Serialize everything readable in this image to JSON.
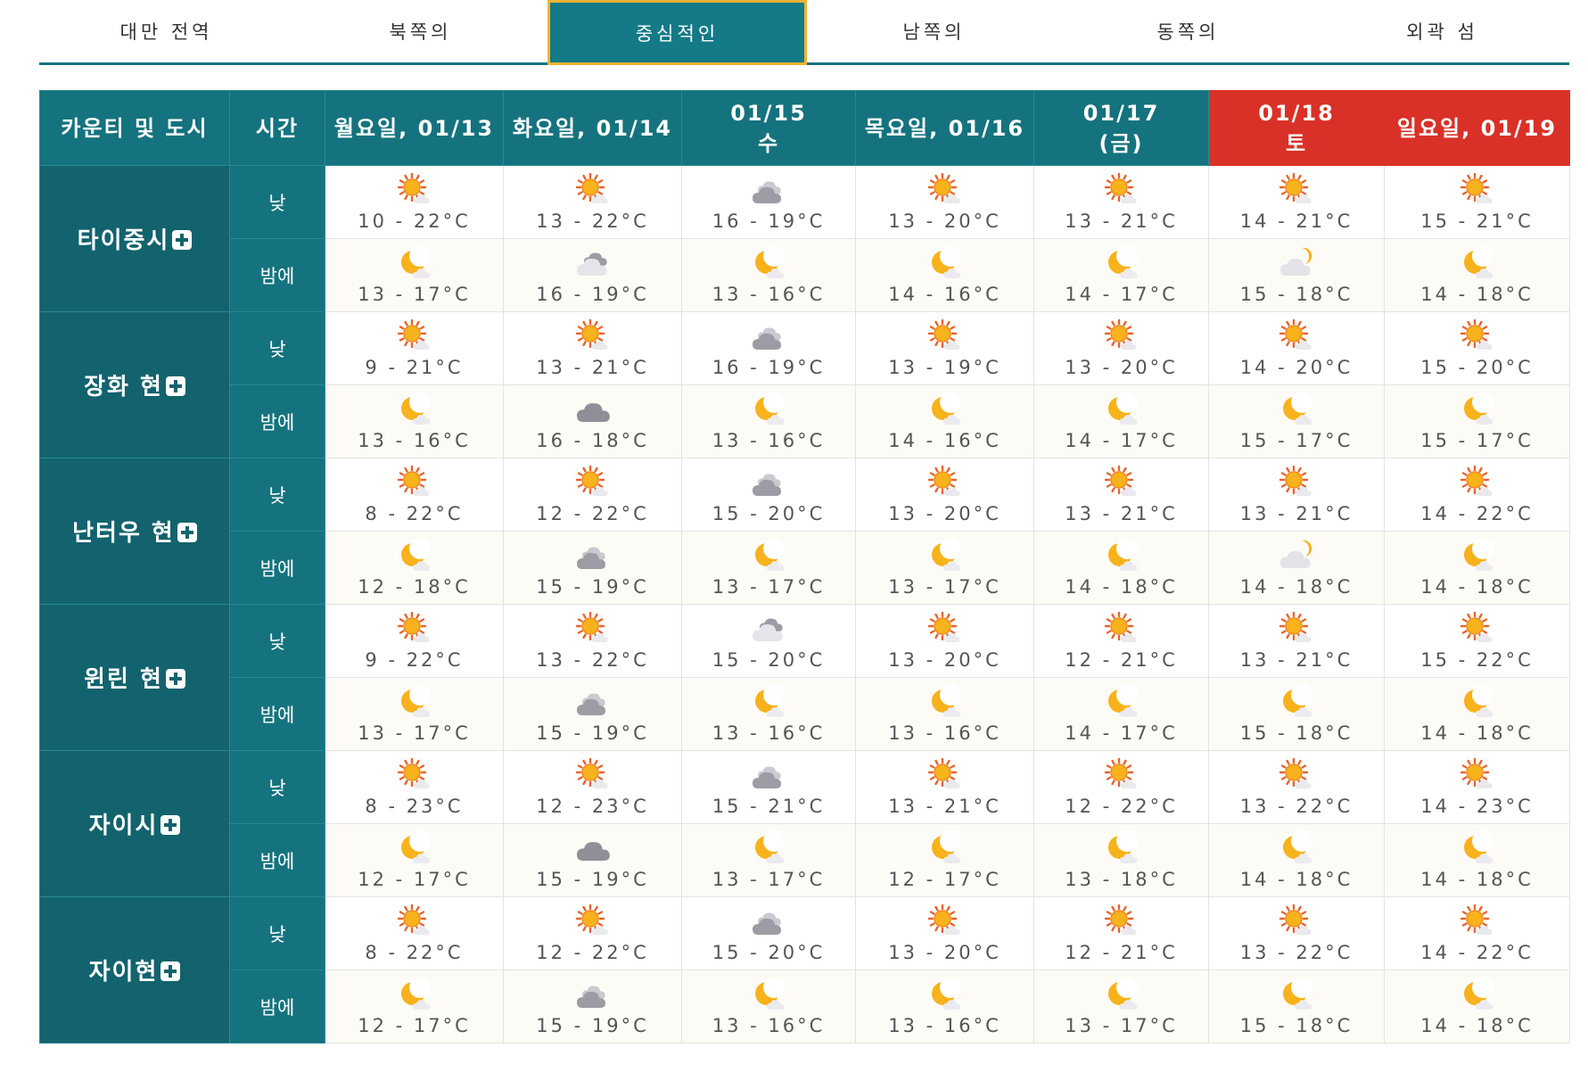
{
  "tabs": [
    "대만 전역",
    "북쪽의",
    "중심적인",
    "남쪽의",
    "동쪽의",
    "외곽 섬"
  ],
  "active_tab": 2,
  "table": {
    "headers": {
      "area": "카운티 및 도시",
      "time": "시간",
      "days": [
        {
          "lines": [
            "월요일, 01/13"
          ],
          "type": "weekday"
        },
        {
          "lines": [
            "화요일, 01/14"
          ],
          "type": "weekday"
        },
        {
          "lines": [
            "01/15",
            "수"
          ],
          "type": "weekday"
        },
        {
          "lines": [
            "목요일, 01/16"
          ],
          "type": "weekday"
        },
        {
          "lines": [
            "01/17",
            "(금)"
          ],
          "type": "weekday"
        },
        {
          "lines": [
            "01/18",
            "토"
          ],
          "type": "sat"
        },
        {
          "lines": [
            "일요일, 01/19"
          ],
          "type": "sun"
        }
      ]
    },
    "period_labels": {
      "day": "낮",
      "night": "밤에"
    },
    "colors": {
      "header": "#14737e",
      "city": "#12636d",
      "weekend": "#d93127",
      "tab_border": "#f0b431"
    },
    "cities": [
      {
        "name": "타이중시",
        "day": [
          [
            "sunny",
            "10 - 22°C"
          ],
          [
            "sunny",
            "13 - 22°C"
          ],
          [
            "cloudy",
            "16 - 19°C"
          ],
          [
            "sunny",
            "13 - 20°C"
          ],
          [
            "sunny",
            "13 - 21°C"
          ],
          [
            "sunny",
            "14 - 21°C"
          ],
          [
            "sunny",
            "15 - 21°C"
          ]
        ],
        "night": [
          [
            "moon",
            "13 - 17°C"
          ],
          [
            "cloudy-light",
            "16 - 19°C"
          ],
          [
            "moon",
            "13 - 16°C"
          ],
          [
            "moon",
            "14 - 16°C"
          ],
          [
            "moon",
            "14 - 17°C"
          ],
          [
            "cloud-moon",
            "15 - 18°C"
          ],
          [
            "moon",
            "14 - 18°C"
          ]
        ]
      },
      {
        "name": "장화 현",
        "day": [
          [
            "sunny",
            "9 - 21°C"
          ],
          [
            "sunny",
            "13 - 21°C"
          ],
          [
            "cloudy",
            "16 - 19°C"
          ],
          [
            "sunny",
            "13 - 19°C"
          ],
          [
            "sunny",
            "13 - 20°C"
          ],
          [
            "sunny",
            "14 - 20°C"
          ],
          [
            "sunny",
            "15 - 20°C"
          ]
        ],
        "night": [
          [
            "moon",
            "13 - 16°C"
          ],
          [
            "cloud-dark",
            "16 - 18°C"
          ],
          [
            "moon",
            "13 - 16°C"
          ],
          [
            "moon",
            "14 - 16°C"
          ],
          [
            "moon",
            "14 - 17°C"
          ],
          [
            "moon",
            "15 - 17°C"
          ],
          [
            "moon",
            "15 - 17°C"
          ]
        ]
      },
      {
        "name": "난터우 현",
        "day": [
          [
            "sunny",
            "8 - 22°C"
          ],
          [
            "sunny",
            "12 - 22°C"
          ],
          [
            "cloudy",
            "15 - 20°C"
          ],
          [
            "sunny",
            "13 - 20°C"
          ],
          [
            "sunny",
            "13 - 21°C"
          ],
          [
            "sunny",
            "13 - 21°C"
          ],
          [
            "sunny",
            "14 - 22°C"
          ]
        ],
        "night": [
          [
            "moon",
            "12 - 18°C"
          ],
          [
            "cloudy",
            "15 - 19°C"
          ],
          [
            "moon",
            "13 - 17°C"
          ],
          [
            "moon",
            "13 - 17°C"
          ],
          [
            "moon",
            "14 - 18°C"
          ],
          [
            "cloud-moon",
            "14 - 18°C"
          ],
          [
            "moon",
            "14 - 18°C"
          ]
        ]
      },
      {
        "name": "윈린 현",
        "day": [
          [
            "sunny",
            "9 - 22°C"
          ],
          [
            "sunny",
            "13 - 22°C"
          ],
          [
            "cloudy-light",
            "15 - 20°C"
          ],
          [
            "sunny",
            "13 - 20°C"
          ],
          [
            "sunny",
            "12 - 21°C"
          ],
          [
            "sunny",
            "13 - 21°C"
          ],
          [
            "sunny",
            "15 - 22°C"
          ]
        ],
        "night": [
          [
            "moon",
            "13 - 17°C"
          ],
          [
            "cloudy",
            "15 - 19°C"
          ],
          [
            "moon",
            "13 - 16°C"
          ],
          [
            "moon",
            "13 - 16°C"
          ],
          [
            "moon",
            "14 - 17°C"
          ],
          [
            "moon",
            "15 - 18°C"
          ],
          [
            "moon",
            "14 - 18°C"
          ]
        ]
      },
      {
        "name": "자이시",
        "day": [
          [
            "sunny",
            "8 - 23°C"
          ],
          [
            "sunny",
            "12 - 23°C"
          ],
          [
            "cloudy",
            "15 - 21°C"
          ],
          [
            "sunny",
            "13 - 21°C"
          ],
          [
            "sunny",
            "12 - 22°C"
          ],
          [
            "sunny",
            "13 - 22°C"
          ],
          [
            "sunny",
            "14 - 23°C"
          ]
        ],
        "night": [
          [
            "moon",
            "12 - 17°C"
          ],
          [
            "cloud-dark",
            "15 - 19°C"
          ],
          [
            "moon",
            "13 - 17°C"
          ],
          [
            "moon",
            "12 - 17°C"
          ],
          [
            "moon",
            "13 - 18°C"
          ],
          [
            "moon",
            "14 - 18°C"
          ],
          [
            "moon",
            "14 - 18°C"
          ]
        ]
      },
      {
        "name": "자이현",
        "day": [
          [
            "sunny",
            "8 - 22°C"
          ],
          [
            "sunny",
            "12 - 22°C"
          ],
          [
            "cloudy",
            "15 - 20°C"
          ],
          [
            "sunny",
            "13 - 20°C"
          ],
          [
            "sunny",
            "12 - 21°C"
          ],
          [
            "sunny",
            "13 - 22°C"
          ],
          [
            "sunny",
            "14 - 22°C"
          ]
        ],
        "night": [
          [
            "moon",
            "12 - 17°C"
          ],
          [
            "cloudy",
            "15 - 19°C"
          ],
          [
            "moon",
            "13 - 16°C"
          ],
          [
            "moon",
            "13 - 16°C"
          ],
          [
            "moon",
            "13 - 17°C"
          ],
          [
            "moon",
            "15 - 18°C"
          ],
          [
            "moon",
            "14 - 18°C"
          ]
        ]
      }
    ]
  }
}
